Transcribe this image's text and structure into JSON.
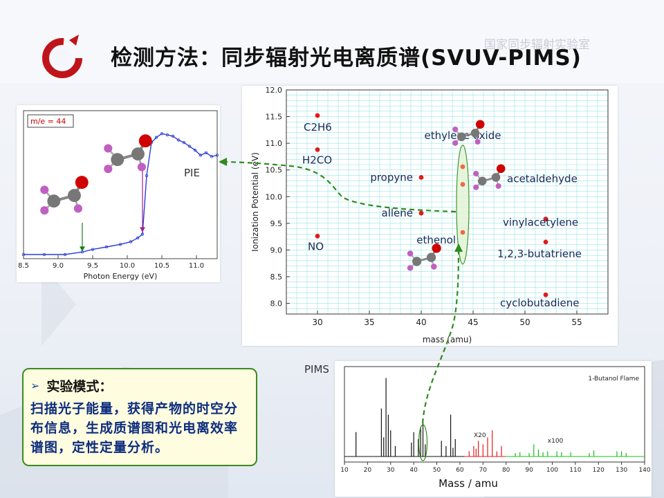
{
  "slide": {
    "title": "检测方法：同步辐射光电离质谱(SVUV-PIMS)",
    "watermark": "国家同步辐射实验室",
    "note_box": {
      "heading": "实验模式：",
      "body": "扫描光子能量，获得产物的时空分布信息，生成质谱图和光电离效率谱图，定性定量分析。"
    },
    "pie_label": "PIE",
    "pims_label": "PIMS"
  },
  "colors": {
    "accent_red": "#c0141b",
    "data_dot": "#e21a1a",
    "connector_green": "#2e8b1e",
    "pie_curve": "#2a3bd6",
    "ms_black": "#111111",
    "ms_red": "#e21a1a",
    "ms_green": "#18c018",
    "grid_cyan": "#6fdada"
  },
  "chart_data": [
    {
      "type": "scatter",
      "xlabel": "mass (amu)",
      "ylabel": "Ionization Potential (eV)",
      "xlim": [
        27,
        58
      ],
      "ylim": [
        7.8,
        12.0
      ],
      "xticks": [
        "30",
        "35",
        "40",
        "45",
        "50",
        "55"
      ],
      "yticks": [
        "8.0",
        "8.5",
        "9.0",
        "9.5",
        "10.0",
        "10.5",
        "11.0",
        "11.5",
        "12.0"
      ],
      "grid": true,
      "points": [
        {
          "x": 30,
          "y": 11.52,
          "label": "C2H6"
        },
        {
          "x": 30,
          "y": 10.88,
          "label": "H2CO"
        },
        {
          "x": 30,
          "y": 9.26,
          "label": "NO"
        },
        {
          "x": 40,
          "y": 10.36,
          "label": "propyne"
        },
        {
          "x": 40,
          "y": 9.69,
          "label": "allene"
        },
        {
          "x": 44,
          "y": 10.56,
          "label": "ethylene oxide"
        },
        {
          "x": 44,
          "y": 10.23,
          "label": "acetaldehyde"
        },
        {
          "x": 44,
          "y": 9.33,
          "label": "ethenol"
        },
        {
          "x": 52,
          "y": 9.58,
          "label": "vinylacetylene"
        },
        {
          "x": 52,
          "y": 9.15,
          "label": "1,2,3-butatriene"
        },
        {
          "x": 52,
          "y": 8.16,
          "label": "cyclobutadiene"
        }
      ]
    },
    {
      "type": "line",
      "annotation": "m/e = 44",
      "xlabel": "Photon Energy (eV)",
      "xlim": [
        8.5,
        11.3
      ],
      "ylim": [
        0,
        1
      ],
      "xticks": [
        "8.5",
        "9.0",
        "9.5",
        "10.0",
        "10.5",
        "11.0"
      ],
      "x": [
        8.5,
        8.8,
        9.1,
        9.35,
        9.5,
        9.7,
        9.9,
        10.05,
        10.15,
        10.22,
        10.28,
        10.35,
        10.42,
        10.5,
        10.58,
        10.66,
        10.74,
        10.82,
        10.9,
        10.98,
        11.06,
        11.14,
        11.22,
        11.3
      ],
      "y": [
        0.0,
        0.0,
        0.0,
        0.02,
        0.04,
        0.06,
        0.08,
        0.1,
        0.13,
        0.16,
        0.62,
        0.88,
        0.92,
        0.95,
        0.94,
        0.93,
        0.9,
        0.88,
        0.85,
        0.82,
        0.78,
        0.8,
        0.77,
        0.78
      ]
    },
    {
      "type": "bar",
      "title": "1-Butanol Flame",
      "xlabel": "Mass / amu",
      "xlim": [
        10,
        140
      ],
      "xticks": [
        "10",
        "20",
        "30",
        "40",
        "50",
        "60",
        "70",
        "80",
        "90",
        "100",
        "110",
        "120",
        "130",
        "140"
      ],
      "annotations": [
        "X20",
        "x100"
      ],
      "peaks": [
        {
          "m": 15,
          "h": 0.28,
          "c": "black"
        },
        {
          "m": 26,
          "h": 0.55,
          "c": "black"
        },
        {
          "m": 27,
          "h": 0.22,
          "c": "black"
        },
        {
          "m": 28,
          "h": 0.9,
          "c": "black"
        },
        {
          "m": 29,
          "h": 0.48,
          "c": "black"
        },
        {
          "m": 30,
          "h": 0.3,
          "c": "black"
        },
        {
          "m": 32,
          "h": 0.12,
          "c": "black"
        },
        {
          "m": 39,
          "h": 0.16,
          "c": "black"
        },
        {
          "m": 40,
          "h": 0.28,
          "c": "black"
        },
        {
          "m": 42,
          "h": 0.2,
          "c": "black"
        },
        {
          "m": 43,
          "h": 0.34,
          "c": "black"
        },
        {
          "m": 44,
          "h": 0.42,
          "c": "black"
        },
        {
          "m": 45,
          "h": 0.14,
          "c": "black"
        },
        {
          "m": 52,
          "h": 0.18,
          "c": "black"
        },
        {
          "m": 54,
          "h": 0.12,
          "c": "black"
        },
        {
          "m": 56,
          "h": 0.48,
          "c": "black"
        },
        {
          "m": 57,
          "h": 0.1,
          "c": "black"
        },
        {
          "m": 58,
          "h": 0.2,
          "c": "black"
        },
        {
          "m": 64,
          "h": 0.06,
          "c": "red"
        },
        {
          "m": 66,
          "h": 0.12,
          "c": "red"
        },
        {
          "m": 67,
          "h": 0.09,
          "c": "red"
        },
        {
          "m": 68,
          "h": 0.18,
          "c": "red"
        },
        {
          "m": 70,
          "h": 0.14,
          "c": "red"
        },
        {
          "m": 72,
          "h": 0.22,
          "c": "red"
        },
        {
          "m": 74,
          "h": 0.3,
          "c": "red"
        },
        {
          "m": 76,
          "h": 0.06,
          "c": "red"
        },
        {
          "m": 78,
          "h": 0.12,
          "c": "red"
        },
        {
          "m": 84,
          "h": 0.04,
          "c": "green"
        },
        {
          "m": 86,
          "h": 0.05,
          "c": "green"
        },
        {
          "m": 90,
          "h": 0.04,
          "c": "green"
        },
        {
          "m": 92,
          "h": 0.14,
          "c": "green"
        },
        {
          "m": 94,
          "h": 0.08,
          "c": "green"
        },
        {
          "m": 96,
          "h": 0.05,
          "c": "green"
        },
        {
          "m": 98,
          "h": 0.06,
          "c": "green"
        },
        {
          "m": 102,
          "h": 0.06,
          "c": "green"
        },
        {
          "m": 104,
          "h": 0.05,
          "c": "green"
        },
        {
          "m": 108,
          "h": 0.05,
          "c": "green"
        },
        {
          "m": 116,
          "h": 0.04,
          "c": "green"
        },
        {
          "m": 118,
          "h": 0.07,
          "c": "green"
        },
        {
          "m": 128,
          "h": 0.06,
          "c": "green"
        },
        {
          "m": 130,
          "h": 0.06,
          "c": "green"
        },
        {
          "m": 132,
          "h": 0.04,
          "c": "green"
        }
      ]
    }
  ]
}
